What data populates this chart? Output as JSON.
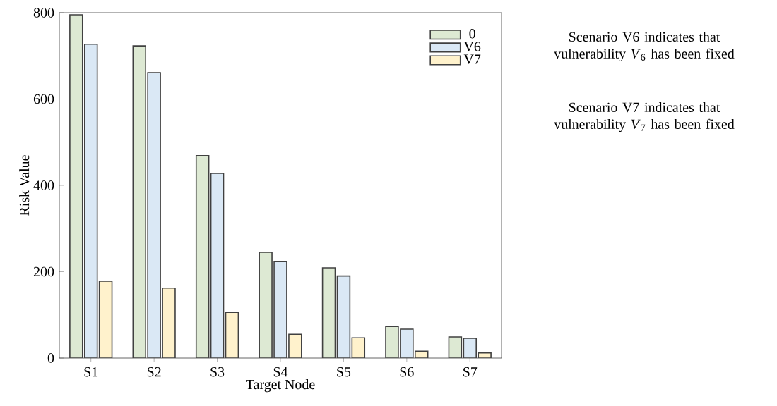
{
  "chart_data": {
    "type": "bar",
    "xlabel": "Target Node",
    "ylabel": "Risk Value",
    "categories": [
      "S1",
      "S2",
      "S3",
      "S4",
      "S5",
      "S6",
      "S7"
    ],
    "series": [
      {
        "name": "0",
        "color": "#dde9d3",
        "values": [
          795,
          723,
          469,
          245,
          209,
          73,
          49
        ]
      },
      {
        "name": "V6",
        "color": "#dae8f5",
        "values": [
          727,
          661,
          428,
          224,
          190,
          67,
          46
        ]
      },
      {
        "name": "V7",
        "color": "#fff2cc",
        "values": [
          178,
          162,
          106,
          55,
          47,
          16,
          12
        ]
      }
    ],
    "ylim": [
      0,
      800
    ],
    "yticks": [
      0,
      200,
      400,
      600,
      800
    ],
    "legend": "top right",
    "annotations": [
      "Scenario V6 indicates that vulnerability *V*$_{6}$ has been fixed",
      "Scenario V7 indicates that vulnerability *V*$_{7}$ has been fixed"
    ]
  }
}
